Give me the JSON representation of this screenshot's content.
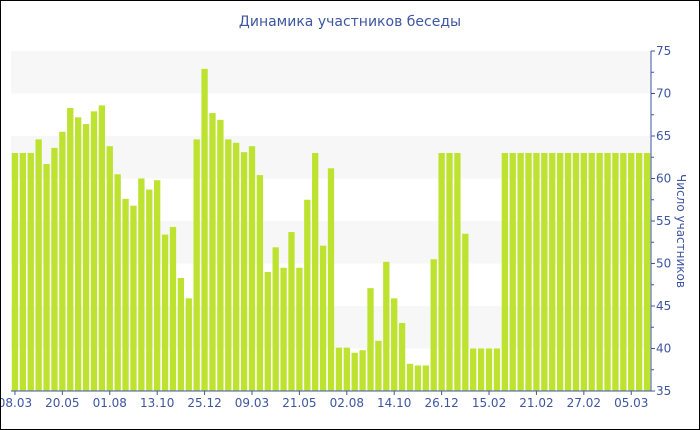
{
  "chart_data": {
    "type": "bar",
    "title": "Динамика участников беседы",
    "xlabel": "",
    "ylabel": "Число участников",
    "ylim": [
      35,
      75
    ],
    "yticks": [
      35,
      40,
      45,
      50,
      55,
      60,
      65,
      70,
      75
    ],
    "y_axis_side": "right",
    "grid": "alternating horizontal bands",
    "legend": "none",
    "colors": {
      "bar": "#bde22f",
      "axis": "#3d56a0",
      "band": "#f7f7f7"
    },
    "categories": [
      "08.03",
      "",
      "",
      "",
      "",
      "",
      "20.05",
      "",
      "",
      "",
      "",
      "",
      "01.08",
      "",
      "",
      "",
      "",
      "",
      "13.10",
      "",
      "",
      "",
      "",
      "",
      "25.12",
      "",
      "",
      "",
      "",
      "",
      "09.03",
      "",
      "",
      "",
      "",
      "",
      "21.05",
      "",
      "",
      "",
      "",
      "",
      "02.08",
      "",
      "",
      "",
      "",
      "",
      "14.10",
      "",
      "",
      "",
      "",
      "",
      "26.12",
      "",
      "",
      "",
      "",
      "",
      "15.02",
      "",
      "",
      "",
      "",
      "",
      "21.02",
      "",
      "",
      "",
      "",
      "",
      "27.02",
      "",
      "",
      "",
      "",
      "",
      "05.03",
      "",
      ""
    ],
    "values": [
      63,
      63,
      63,
      64.6,
      61.7,
      63.6,
      65.5,
      68.3,
      67.2,
      66.4,
      67.9,
      68.6,
      63.8,
      60.5,
      57.6,
      56.8,
      60,
      58.7,
      59.8,
      53.4,
      54.3,
      48.3,
      45.9,
      64.6,
      72.9,
      67.7,
      66.9,
      64.6,
      64.2,
      63.1,
      63.8,
      60.4,
      49,
      51.9,
      49.5,
      53.7,
      49.5,
      57.5,
      63,
      52.1,
      61.2,
      40.1,
      40.1,
      39.5,
      39.8,
      47.1,
      40.9,
      50.2,
      45.9,
      43,
      38.2,
      38,
      38,
      50.5,
      63,
      63,
      63,
      53.5,
      40,
      40,
      40,
      40,
      63,
      63,
      63,
      63,
      63,
      63,
      63,
      63,
      63,
      63,
      63,
      63,
      63,
      63,
      63,
      63,
      63,
      63,
      63
    ]
  }
}
